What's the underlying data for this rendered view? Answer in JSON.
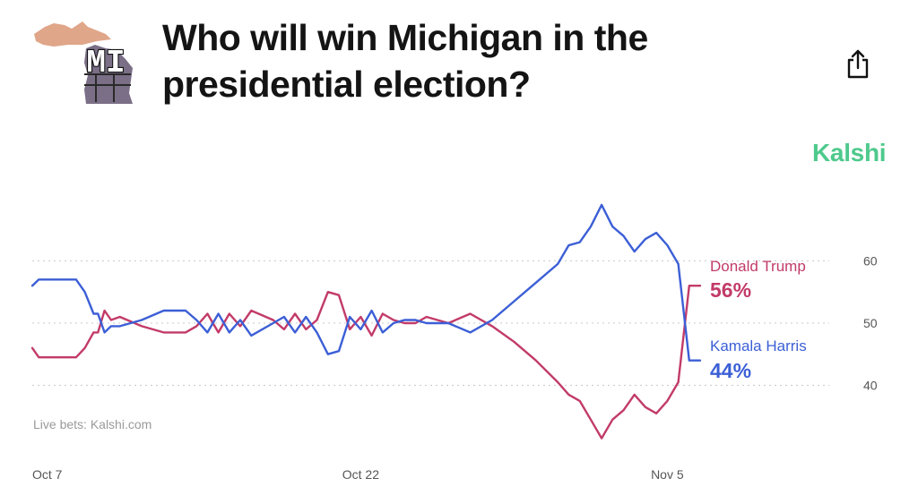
{
  "header": {
    "state_abbrev": "MI",
    "title": "Who will win Michigan in the presidential election?"
  },
  "brand": "Kalshi",
  "source": "Live bets: Kalshi.com",
  "colors": {
    "trump": "#c23b68",
    "harris": "#3c5fd6",
    "brand": "#4ec98c",
    "grid": "#cfcfcf",
    "axis_text": "#555555"
  },
  "chart_data": {
    "type": "line",
    "title": "Who will win Michigan in the presidential election?",
    "xlabel": "",
    "ylabel": "",
    "x_range": [
      0,
      30.5
    ],
    "ylim": [
      30,
      72
    ],
    "y_ticks": [
      40,
      50,
      60
    ],
    "x_ticks": [
      {
        "label": "Oct 7",
        "x": 0
      },
      {
        "label": "Oct 22",
        "x": 15
      },
      {
        "label": "Nov 5",
        "x": 29
      }
    ],
    "x": [
      0,
      0.3,
      1,
      2,
      2.4,
      2.8,
      3,
      3.3,
      3.6,
      4,
      5,
      6,
      7,
      7.5,
      8,
      8.5,
      9,
      9.5,
      10,
      11,
      11.5,
      12,
      12.5,
      13,
      13.5,
      14,
      14.5,
      15,
      15.5,
      16,
      16.5,
      17,
      17.5,
      18,
      19,
      20,
      21,
      22,
      23,
      24,
      24.5,
      25,
      25.5,
      26,
      26.5,
      27,
      27.5,
      28,
      28.5,
      29,
      29.5,
      30,
      30.3,
      30.5
    ],
    "series": [
      {
        "name": "Donald Trump",
        "values": [
          46,
          44.5,
          44.5,
          44.5,
          46,
          48.5,
          48.5,
          52,
          50.5,
          51,
          49.5,
          48.5,
          48.5,
          49.5,
          51.5,
          48.5,
          51.5,
          49.5,
          52,
          50.5,
          49,
          51.5,
          49,
          50.5,
          55,
          54.5,
          49,
          51,
          48,
          51.5,
          50.5,
          50,
          50,
          51,
          50,
          51.5,
          49.5,
          47,
          44,
          40.5,
          38.5,
          37.5,
          34.5,
          31.5,
          34.5,
          36,
          38.5,
          36.5,
          35.5,
          37.5,
          40.5,
          56,
          56,
          56
        ],
        "label_pct": "56%"
      },
      {
        "name": "Kamala Harris",
        "values": [
          56,
          57,
          57,
          57,
          55,
          51.5,
          51.5,
          48.5,
          49.5,
          49.5,
          50.5,
          52,
          52,
          50.5,
          48.5,
          51.5,
          48.5,
          50.5,
          48,
          50,
          51,
          48.5,
          51,
          48.5,
          45,
          45.5,
          51,
          49,
          52,
          48.5,
          50,
          50.5,
          50.5,
          50,
          50,
          48.5,
          50.5,
          53.5,
          56.5,
          59.5,
          62.5,
          63,
          65.5,
          69,
          65.5,
          64,
          61.5,
          63.5,
          64.5,
          62.5,
          59.5,
          44,
          44,
          44
        ],
        "label_pct": "44%"
      }
    ]
  }
}
